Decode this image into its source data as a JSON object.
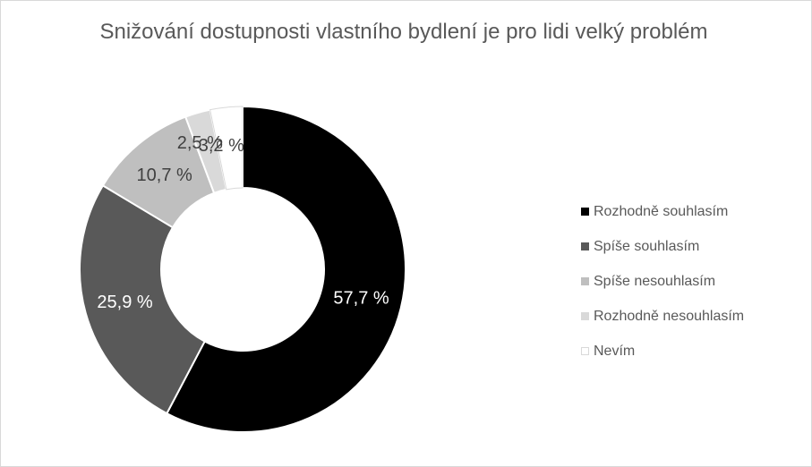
{
  "chart_data": {
    "type": "pie",
    "variant": "donut",
    "title": "Snižování dostupnosti vlastního bydlení je pro lidi velký problém",
    "categories": [
      "Rozhodně souhlasím",
      "Spíše souhlasím",
      "Spíše nesouhlasím",
      "Rozhodně nesouhlasím",
      "Nevím"
    ],
    "values": [
      57.7,
      25.9,
      10.7,
      2.5,
      3.2
    ],
    "value_labels": [
      "57,7 %",
      "25,9 %",
      "10,7 %",
      "2,5 %",
      "3,2 %"
    ],
    "colors": [
      "#000000",
      "#595959",
      "#bfbfbf",
      "#d9d9d9",
      "#ffffff"
    ],
    "label_colors": [
      "#ffffff",
      "#ffffff",
      "#404040",
      "#404040",
      "#404040"
    ],
    "legend_position": "right"
  }
}
